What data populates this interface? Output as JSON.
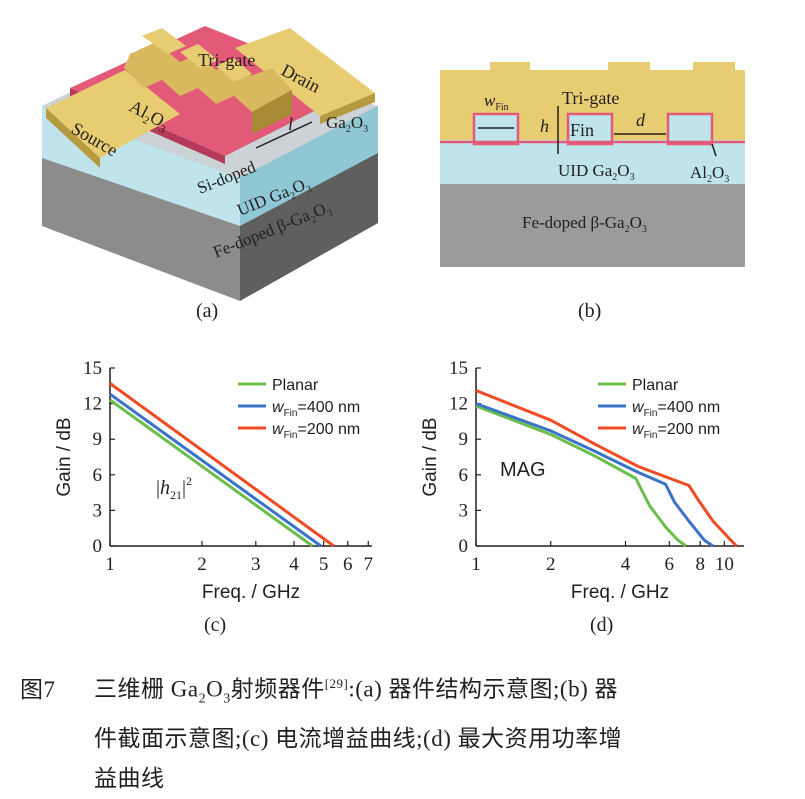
{
  "figure": {
    "panel_a": {
      "label": "(a)",
      "tri_gate": "Tri-gate",
      "drain": "Drain",
      "source": "Source",
      "al2o3_base": "Al",
      "al2o3_sub": "2",
      "al2o3_o": "O",
      "al2o3_sub2": "3",
      "ga2o3_base": "Ga",
      "ga2o3_sub": "2",
      "ga2o3_o": "O",
      "ga2o3_sub2": "3",
      "l": "l",
      "si_doped": "Si-doped",
      "uid_base": "UID Ga",
      "uid_sub": "2",
      "uid_o": "O",
      "uid_sub2": "3",
      "fe_base": "Fe-doped β-Ga",
      "fe_sub": "2",
      "fe_o": "O",
      "fe_sub2": "3"
    },
    "panel_b": {
      "label": "(b)",
      "wfin_w": "w",
      "wfin_sub": "Fin",
      "h": "h",
      "tri_gate": "Tri-gate",
      "fin": "Fin",
      "d": "d",
      "uid_base": "UID Ga",
      "uid_sub": "2",
      "uid_o": "O",
      "uid_sub2": "3",
      "al_base": "Al",
      "al_sub": "2",
      "al_o": "O",
      "al_sub2": "3",
      "fe_base": "Fe-doped β-Ga",
      "fe_sub": "2",
      "fe_o": "O",
      "fe_sub2": "3"
    },
    "panel_c": {
      "label": "(c)",
      "annotation": "h",
      "annotation_sub": "21",
      "annotation_sup": "2"
    },
    "panel_d": {
      "label": "(d)",
      "annotation": "MAG"
    },
    "legend": {
      "planar": "Planar",
      "w": "w",
      "w_sub": "Fin",
      "w400_rest": "=400 nm",
      "w200_rest": "=200 nm"
    },
    "colors": {
      "planar": "#6abf4b",
      "w400": "#3b73c9",
      "w200": "#ef4b24",
      "gate": "#e8cc72",
      "oxide": "#e35a78",
      "uid": "#bfe4ec",
      "substrate": "#9b9b9b"
    }
  },
  "caption": {
    "number": "图7",
    "line1_pre": "三维栅 Ga",
    "line1_sub1": "2",
    "line1_o": "O",
    "line1_sub2": "3",
    "line1_post": "射频器件",
    "ref": "[29]",
    "line1_rest": ":(a) 器件结构示意图;(b) 器",
    "line2": "件截面示意图;(c) 电流增益曲线;(d) 最大资用功率增",
    "line3": "益曲线"
  },
  "chart_data": [
    {
      "type": "line",
      "panel": "(c)",
      "xlabel": "Freq. / GHz",
      "ylabel": "Gain / dB",
      "x_scale": "log",
      "xlim": [
        1,
        7.2
      ],
      "ylim": [
        0,
        15
      ],
      "xticks": [
        1,
        2,
        3,
        4,
        5,
        6,
        7
      ],
      "yticks": [
        0,
        3,
        6,
        9,
        12,
        15
      ],
      "legend_position": "top-right",
      "series": [
        {
          "name": "Planar",
          "x": [
            1,
            4.6
          ],
          "y": [
            12.3,
            0
          ]
        },
        {
          "name": "wFin=400 nm",
          "x": [
            1,
            4.9
          ],
          "y": [
            12.8,
            0
          ]
        },
        {
          "name": "wFin=200 nm",
          "x": [
            1,
            5.4
          ],
          "y": [
            13.7,
            0
          ]
        }
      ]
    },
    {
      "type": "line",
      "panel": "(d)",
      "xlabel": "Freq. / GHz",
      "ylabel": "Gain / dB",
      "x_scale": "log",
      "xlim": [
        1,
        12
      ],
      "ylim": [
        0,
        15
      ],
      "xticks": [
        1,
        2,
        4,
        6,
        8,
        10
      ],
      "yticks": [
        0,
        3,
        6,
        9,
        12,
        15
      ],
      "legend_position": "top-right",
      "series": [
        {
          "name": "Planar",
          "x": [
            1,
            2,
            3,
            4.4,
            5,
            5.8,
            6.5,
            7
          ],
          "y": [
            11.8,
            9.4,
            7.6,
            5.7,
            3.4,
            1.6,
            0.5,
            0
          ]
        },
        {
          "name": "wFin=400 nm",
          "x": [
            1,
            2,
            3,
            4.5,
            5.8,
            6.3,
            7.2,
            8.3,
            9
          ],
          "y": [
            12.0,
            9.7,
            8.0,
            6.2,
            5.2,
            3.7,
            2.1,
            0.5,
            0
          ]
        },
        {
          "name": "wFin=200 nm",
          "x": [
            1,
            2,
            3,
            4.5,
            7.2,
            7.9,
            9,
            10.5,
            11.2
          ],
          "y": [
            13.1,
            10.6,
            8.6,
            6.7,
            5.1,
            3.8,
            2.1,
            0.6,
            0
          ]
        }
      ]
    }
  ]
}
